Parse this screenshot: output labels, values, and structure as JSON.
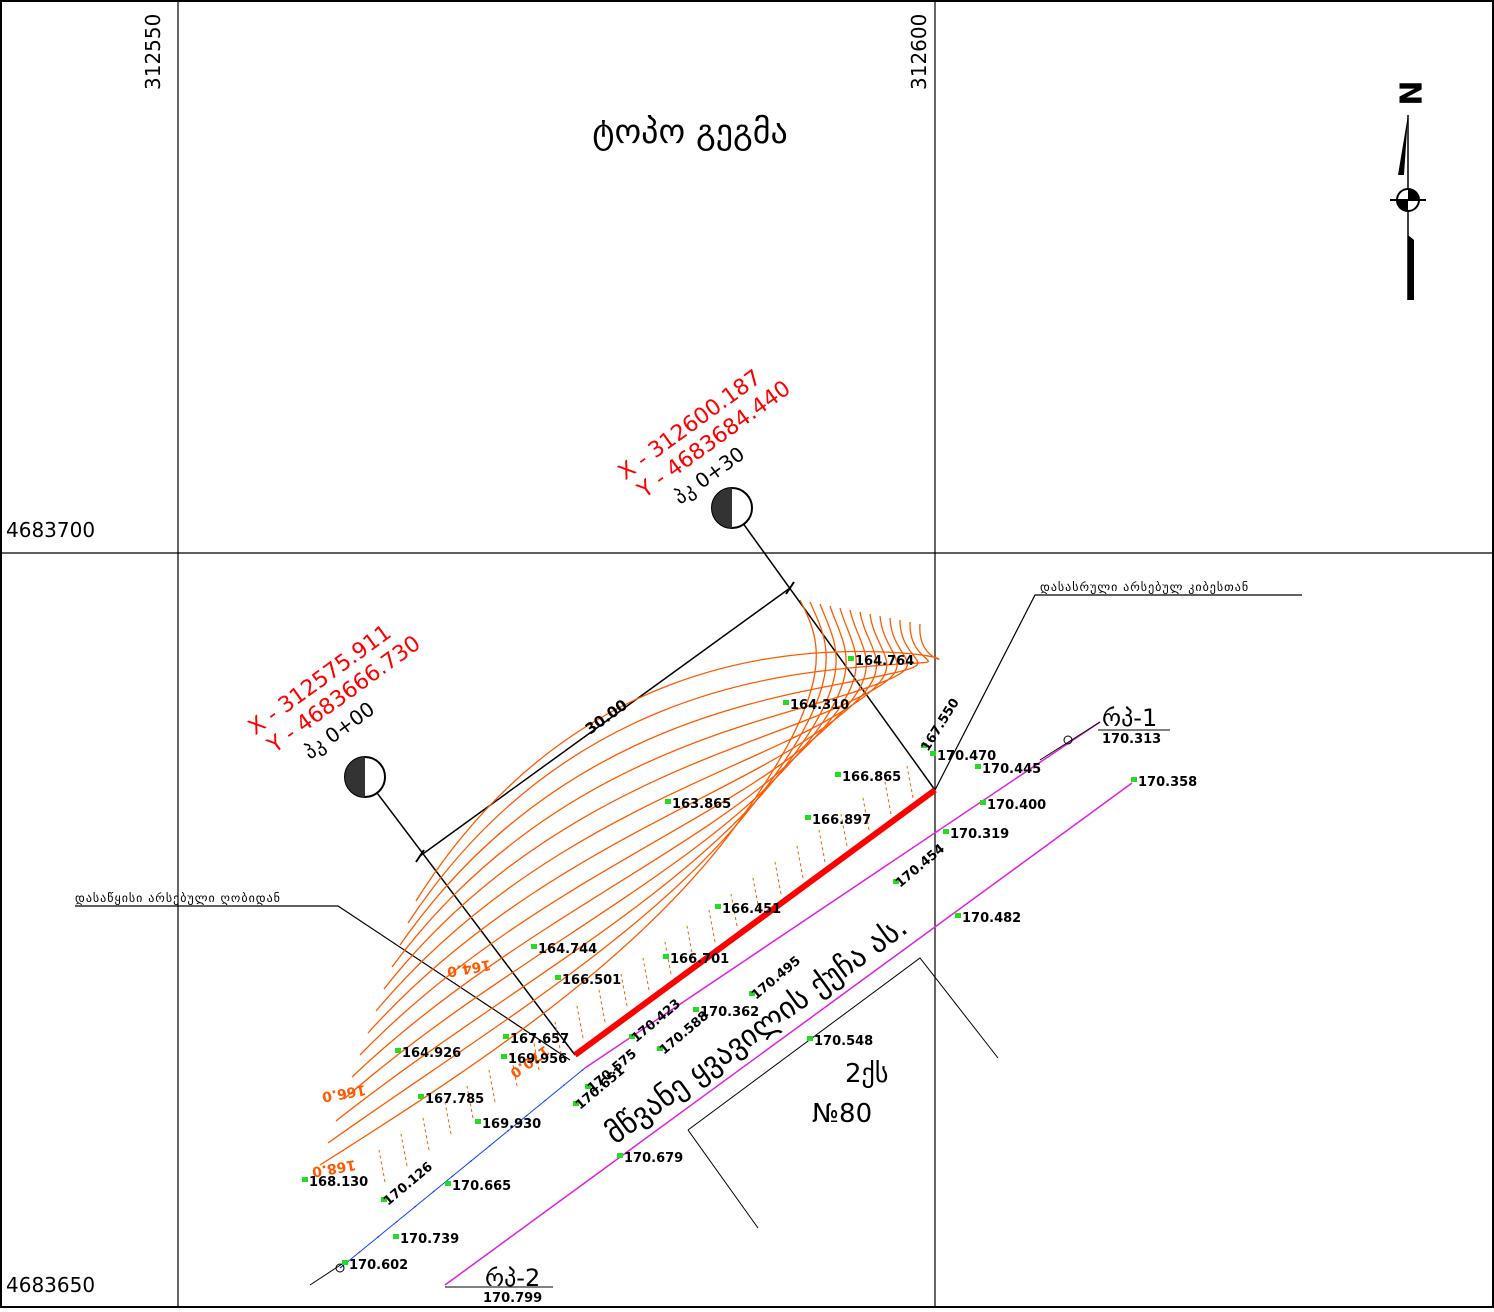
{
  "grid": {
    "x_labels": [
      "312550",
      "312600"
    ],
    "y_labels": [
      "4683700",
      "4683650"
    ]
  },
  "title": "ტოპო გეგმა",
  "north": "N",
  "stations": [
    {
      "label": "პკ 0+00",
      "x": "X - 312575.911",
      "y": "Y - 4683666.730"
    },
    {
      "label": "პკ 0+30",
      "x": "X - 312600.187",
      "y": "Y - 4683684.440"
    }
  ],
  "dimension": "30.00",
  "notes": {
    "start": "დასაწყისი არსებული ღობიდან",
    "end": "დასასრული არსებულ კიბესთან"
  },
  "benchmarks": [
    {
      "label": "რპ-1",
      "elevation": "170.313"
    },
    {
      "label": "რპ-2",
      "elevation": "170.799"
    }
  ],
  "spot_heights": [
    "164.764",
    "164.310",
    "163.865",
    "167.550",
    "170.470",
    "170.445",
    "166.865",
    "170.400",
    "166.897",
    "170.319",
    "170.454",
    "170.482",
    "166.451",
    "164.744",
    "166.701",
    "166.501",
    "170.495",
    "170.362",
    "170.423",
    "170.588",
    "167.657",
    "169.956",
    "170.548",
    "164.926",
    "170.575",
    "170.651",
    "167.785",
    "169.930",
    "168.130",
    "170.126",
    "170.665",
    "170.679",
    "170.739",
    "170.602",
    "170.358"
  ],
  "contour_labels": [
    "164.0",
    "166.0",
    "168.0",
    "170.0"
  ],
  "street": "მწვანე ყვავილის ქუჩა ას.",
  "building": {
    "floors": "2ქს",
    "number": "№80"
  }
}
